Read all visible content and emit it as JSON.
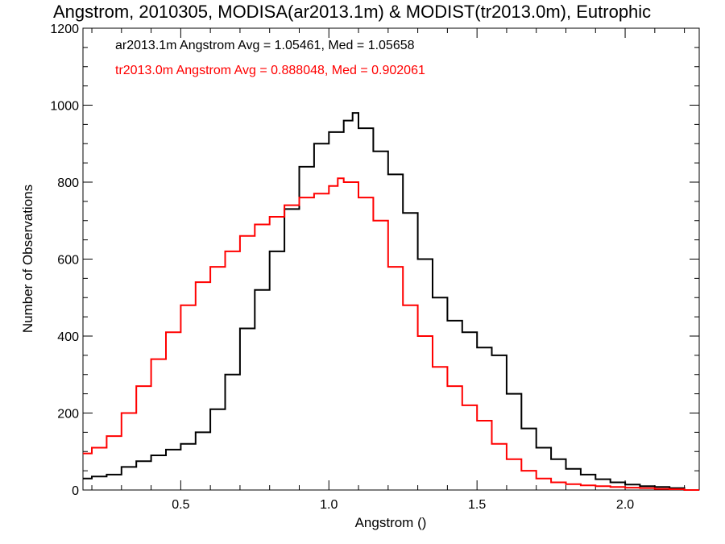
{
  "chart_data": {
    "type": "line",
    "title": "Angstrom, 2010305, MODISA(ar2013.1m) & MODIST(tr2013.0m), Eutrophic",
    "xlabel": "Angstrom ()",
    "ylabel": "Number of Observations",
    "xlim": [
      0.17,
      2.25
    ],
    "ylim": [
      0,
      1200
    ],
    "xticks": [
      0.5,
      1.0,
      1.5,
      2.0
    ],
    "xtick_labels": [
      "0.5",
      "1.0",
      "1.5",
      "2.0"
    ],
    "yticks": [
      0,
      200,
      400,
      600,
      800,
      1000,
      1200
    ],
    "ytick_labels": [
      "0",
      "200",
      "400",
      "600",
      "800",
      "1000",
      "1200"
    ],
    "grid": false,
    "legend_placement": "top-left",
    "series": [
      {
        "label": "ar2013.1m Angstrom Avg = 1.05461, Med = 1.05658",
        "color": "#000000",
        "x": [
          0.17,
          0.2,
          0.25,
          0.3,
          0.35,
          0.4,
          0.45,
          0.5,
          0.55,
          0.6,
          0.65,
          0.7,
          0.75,
          0.8,
          0.85,
          0.9,
          0.95,
          1.0,
          1.05,
          1.08,
          1.1,
          1.15,
          1.2,
          1.25,
          1.3,
          1.35,
          1.4,
          1.45,
          1.5,
          1.55,
          1.6,
          1.65,
          1.7,
          1.75,
          1.8,
          1.85,
          1.9,
          1.95,
          2.0,
          2.05,
          2.1,
          2.15,
          2.2,
          2.25
        ],
        "y": [
          30,
          35,
          40,
          60,
          75,
          90,
          105,
          120,
          150,
          210,
          300,
          420,
          520,
          620,
          730,
          840,
          900,
          930,
          960,
          980,
          940,
          880,
          820,
          720,
          600,
          500,
          440,
          410,
          370,
          350,
          250,
          160,
          110,
          80,
          55,
          40,
          28,
          20,
          14,
          10,
          8,
          5,
          0,
          0
        ]
      },
      {
        "label": "tr2013.0m Angstrom Avg = 0.888048, Med = 0.902061",
        "color": "#ff0000",
        "x": [
          0.17,
          0.2,
          0.25,
          0.3,
          0.35,
          0.4,
          0.45,
          0.5,
          0.55,
          0.6,
          0.65,
          0.7,
          0.75,
          0.8,
          0.85,
          0.9,
          0.95,
          1.0,
          1.03,
          1.05,
          1.1,
          1.15,
          1.2,
          1.25,
          1.3,
          1.35,
          1.4,
          1.45,
          1.5,
          1.55,
          1.6,
          1.65,
          1.7,
          1.75,
          1.8,
          1.85,
          1.9,
          1.95,
          2.0,
          2.05,
          2.1,
          2.15,
          2.2,
          2.25
        ],
        "y": [
          95,
          110,
          140,
          200,
          270,
          340,
          410,
          480,
          540,
          580,
          620,
          660,
          690,
          710,
          740,
          760,
          770,
          790,
          810,
          800,
          760,
          700,
          580,
          480,
          400,
          320,
          270,
          220,
          180,
          120,
          80,
          50,
          30,
          20,
          15,
          12,
          10,
          8,
          6,
          5,
          3,
          2,
          0,
          0
        ]
      }
    ]
  }
}
